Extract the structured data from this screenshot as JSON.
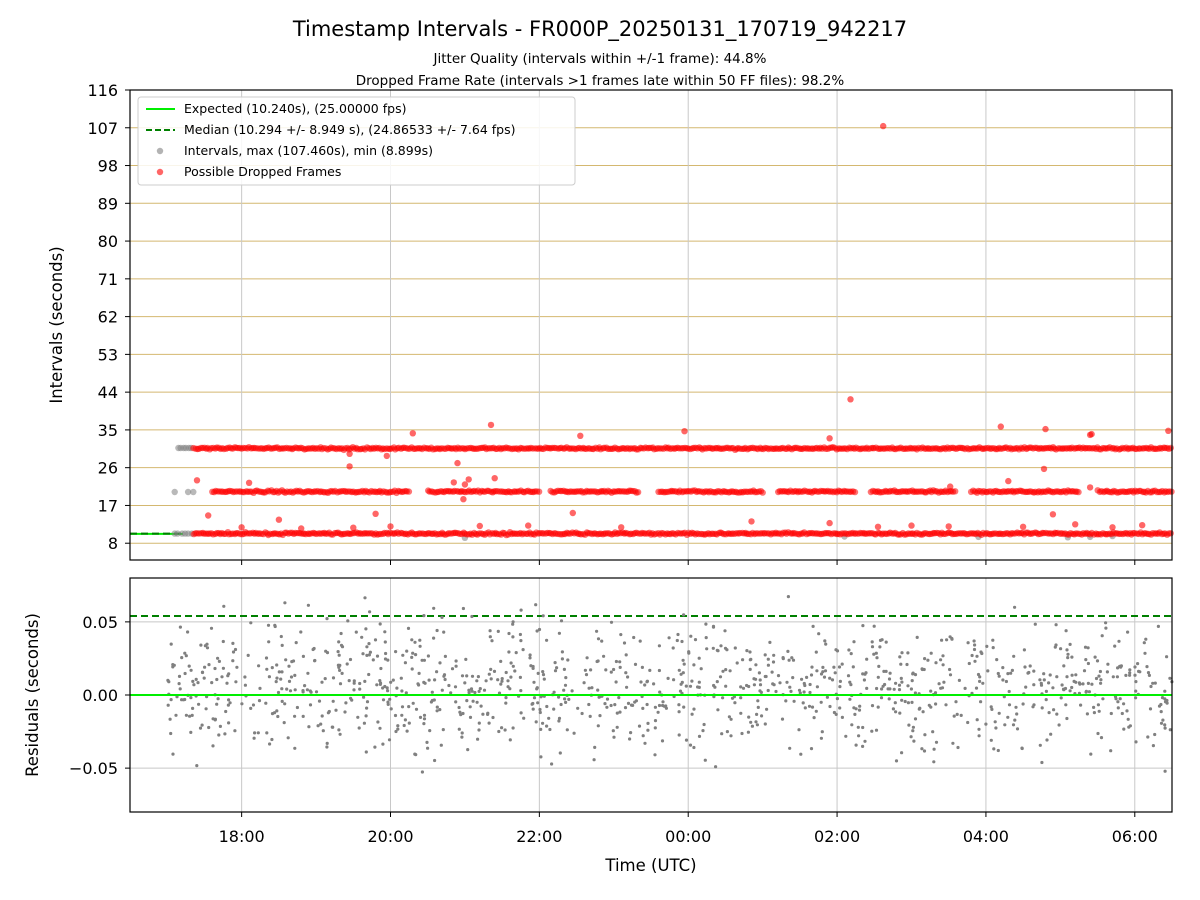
{
  "chart_data": [
    {
      "type": "scatter",
      "title": "Timestamp Intervals - FR000P_20250131_170719_942217",
      "subtitle_lines": [
        "Jitter Quality (intervals within +/-1 frame): 44.8%",
        "Dropped Frame Rate (intervals >1 frames late within 50 FF files): 98.2%"
      ],
      "ylabel": "Intervals (seconds)",
      "ylim": [
        4.0,
        116
      ],
      "yticks": [
        "8",
        "17",
        "26",
        "35",
        "44",
        "53",
        "62",
        "71",
        "80",
        "89",
        "98",
        "107",
        "116"
      ],
      "xlim_hours": [
        16.5,
        30.5
      ],
      "legend_position": "upper-left",
      "legend": [
        "Expected (10.240s), (25.00000 fps)",
        "Median (10.294 +/- 8.949 s), (24.86533 +/- 7.64 fps)",
        "Intervals, max (107.460s), min (8.899s)",
        "Possible Dropped Frames"
      ],
      "expected_interval": 10.24,
      "median_interval": 10.294,
      "max_interval": 107.46,
      "min_interval": 8.899,
      "series": [
        {
          "name": "Intervals, max (107.460s), min (8.899s)",
          "color": "#808080",
          "points": [
            [
              17.15,
              30.7
            ],
            [
              17.18,
              30.7
            ],
            [
              17.22,
              30.7
            ],
            [
              17.25,
              30.7
            ],
            [
              17.29,
              30.7
            ],
            [
              17.32,
              30.7
            ],
            [
              17.1,
              10.3
            ],
            [
              17.14,
              10.3
            ],
            [
              17.2,
              10.3
            ],
            [
              17.24,
              10.3
            ],
            [
              17.28,
              10.3
            ],
            [
              17.33,
              10.3
            ],
            [
              17.1,
              20.2
            ],
            [
              17.28,
              20.2
            ],
            [
              17.35,
              20.2
            ],
            [
              21.0,
              9.3
            ],
            [
              26.1,
              9.6
            ],
            [
              27.9,
              9.5
            ],
            [
              29.1,
              9.4
            ],
            [
              29.4,
              9.5
            ],
            [
              29.7,
              9.7
            ]
          ]
        },
        {
          "name": "Possible Dropped Frames",
          "color": "#ff0000",
          "band_levels": [
            10.29,
            20.3,
            30.6
          ],
          "band_ranges": [
            [
              [
                17.35,
                30.5
              ]
            ],
            [
              [
                17.6,
                20.25
              ],
              [
                20.5,
                22.0
              ],
              [
                22.15,
                23.35
              ],
              [
                23.6,
                25.0
              ],
              [
                25.2,
                26.25
              ],
              [
                26.45,
                27.6
              ],
              [
                27.8,
                29.25
              ],
              [
                29.5,
                30.5
              ]
            ],
            [
              [
                17.35,
                30.5
              ]
            ]
          ],
          "points": [
            [
              26.62,
              107.4
            ],
            [
              26.18,
              42.3
            ],
            [
              21.35,
              36.2
            ],
            [
              28.2,
              35.8
            ],
            [
              28.8,
              35.2
            ],
            [
              30.45,
              34.8
            ],
            [
              20.3,
              34.2
            ],
            [
              22.55,
              33.6
            ],
            [
              23.95,
              34.7
            ],
            [
              25.9,
              33.0
            ],
            [
              29.4,
              33.8
            ],
            [
              29.42,
              34.0
            ],
            [
              19.45,
              29.3
            ],
            [
              19.45,
              26.3
            ],
            [
              19.95,
              28.8
            ],
            [
              20.9,
              27.1
            ],
            [
              21.4,
              23.5
            ],
            [
              21.05,
              23.2
            ],
            [
              21.0,
              22.0
            ],
            [
              20.98,
              18.5
            ],
            [
              17.4,
              23.0
            ],
            [
              18.1,
              22.4
            ],
            [
              20.85,
              22.5
            ],
            [
              28.3,
              22.8
            ],
            [
              28.78,
              25.7
            ],
            [
              29.4,
              21.3
            ],
            [
              22.45,
              15.2
            ],
            [
              27.52,
              21.5
            ],
            [
              17.55,
              14.6
            ],
            [
              18.5,
              13.6
            ],
            [
              19.8,
              15.0
            ],
            [
              21.2,
              12.1
            ],
            [
              21.85,
              12.2
            ],
            [
              24.85,
              13.2
            ],
            [
              25.9,
              12.8
            ],
            [
              26.55,
              11.9
            ],
            [
              27.0,
              12.2
            ],
            [
              27.5,
              12.0
            ],
            [
              28.5,
              11.9
            ],
            [
              29.2,
              12.5
            ],
            [
              29.7,
              11.8
            ],
            [
              28.9,
              14.9
            ],
            [
              18.0,
              11.8
            ],
            [
              18.8,
              11.5
            ],
            [
              19.5,
              11.7
            ],
            [
              20.0,
              12.0
            ],
            [
              23.1,
              11.8
            ],
            [
              30.1,
              12.3
            ]
          ]
        }
      ]
    },
    {
      "type": "scatter",
      "xlabel": "Time (UTC)",
      "ylabel": "Residuals (seconds)",
      "ylim": [
        -0.08,
        0.08
      ],
      "yticks": [
        "0.05",
        "0.00",
        "−0.05"
      ],
      "xticks": [
        "18:00",
        "20:00",
        "22:00",
        "00:00",
        "02:00",
        "04:00",
        "06:00"
      ],
      "xtick_hours": [
        18,
        20,
        22,
        24,
        26,
        28,
        30
      ],
      "expected_residual": 0.0,
      "median_residual": 0.054,
      "series": [
        {
          "name": "Residuals",
          "color": "#808080",
          "x_range": [
            17.0,
            30.5
          ],
          "count": 1150,
          "spread": 0.022
        }
      ]
    }
  ]
}
